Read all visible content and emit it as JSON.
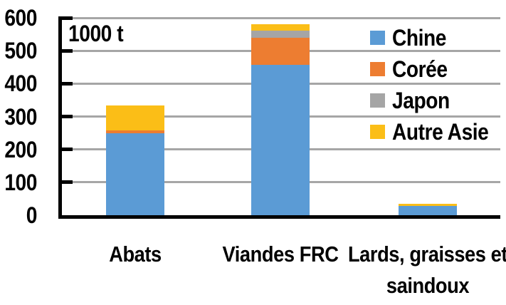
{
  "chart_data": {
    "type": "bar",
    "stacked": true,
    "title": "",
    "unit_label": "1000 t",
    "xlabel": "",
    "ylabel": "",
    "ylim": [
      0,
      600
    ],
    "yticks": [
      0,
      100,
      200,
      300,
      400,
      500,
      600
    ],
    "grid": true,
    "legend_position": "right-inside",
    "categories": [
      "Abats",
      "Viandes FRC",
      "Lards, graisses et saindoux"
    ],
    "series": [
      {
        "name": "Chine",
        "color": "#5B9BD5",
        "values": [
          250,
          458,
          28
        ]
      },
      {
        "name": "Corée",
        "color": "#ED7D31",
        "values": [
          8,
          82,
          0
        ]
      },
      {
        "name": "Japon",
        "color": "#A5A5A5",
        "values": [
          0,
          21,
          0
        ]
      },
      {
        "name": "Autre Asie",
        "color": "#FBBE17",
        "values": [
          75,
          20,
          7
        ]
      }
    ]
  },
  "colors": {
    "gridline": "#A6A6A6",
    "axis": "#000000",
    "background": "#FFFFFF"
  }
}
